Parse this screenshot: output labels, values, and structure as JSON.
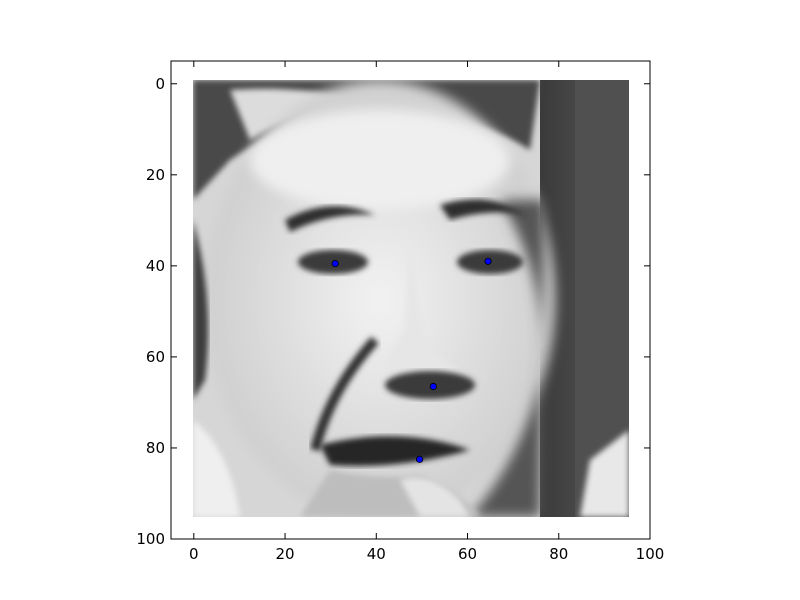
{
  "chart_data": {
    "type": "scatter",
    "title": "",
    "xlabel": "",
    "ylabel": "",
    "xlim": [
      -5,
      100
    ],
    "ylim": [
      100,
      -5
    ],
    "y_inverted": true,
    "grid": false,
    "background_image": "grayscale-face-photo",
    "image_extent": {
      "x": [
        0,
        96
      ],
      "y": [
        0,
        96
      ]
    },
    "x_ticks": [
      0,
      20,
      40,
      60,
      80,
      100
    ],
    "y_ticks": [
      0,
      20,
      40,
      60,
      80,
      100
    ],
    "series": [
      {
        "marker": "circle",
        "color": "#0000ff",
        "points": [
          {
            "x": 31,
            "y": 39.5
          },
          {
            "x": 64.5,
            "y": 39
          },
          {
            "x": 52.5,
            "y": 66.5
          },
          {
            "x": 49.5,
            "y": 82.5
          }
        ]
      }
    ]
  }
}
